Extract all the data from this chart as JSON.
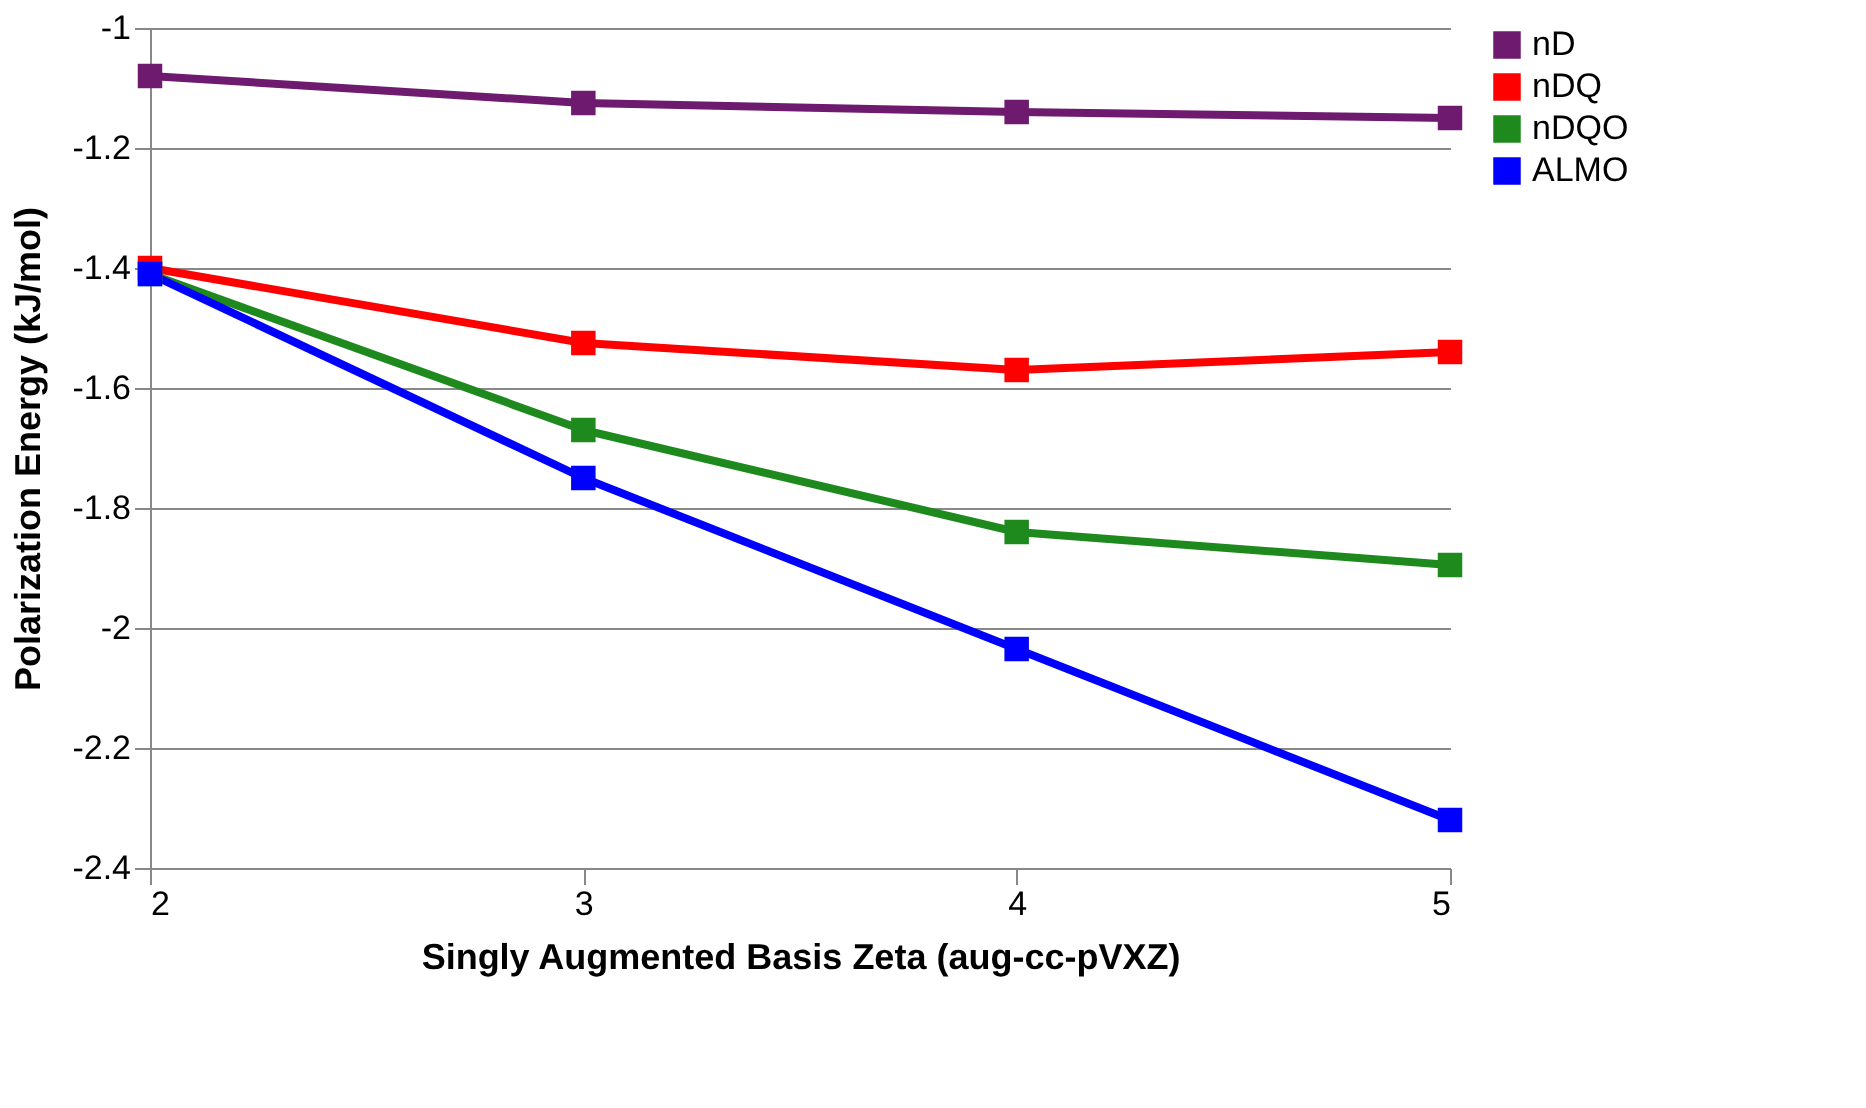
{
  "chart_data": {
    "type": "line",
    "xlabel": "Singly Augmented Basis Zeta (aug-cc-pVXZ)",
    "ylabel": "Polarization Energy (kJ/mol)",
    "x": [
      2,
      3,
      4,
      5
    ],
    "series": [
      {
        "name": "nD",
        "color": "#6e1a6e",
        "values": [
          -1.08,
          -1.125,
          -1.14,
          -1.15
        ]
      },
      {
        "name": "nDQ",
        "color": "#ff0000",
        "values": [
          -1.4,
          -1.525,
          -1.57,
          -1.54
        ]
      },
      {
        "name": "nDQO",
        "color": "#1e8a1e",
        "values": [
          -1.41,
          -1.67,
          -1.84,
          -1.895
        ]
      },
      {
        "name": "ALMO",
        "color": "#0000ff",
        "values": [
          -1.41,
          -1.75,
          -2.035,
          -2.32
        ]
      }
    ],
    "xlim": [
      2,
      5
    ],
    "xticks": [
      2,
      3,
      4,
      5
    ],
    "ylim": [
      -2.4,
      -1
    ],
    "yticks": [
      -2.4,
      -2.2,
      -2,
      -1.8,
      -1.6,
      -1.4,
      -1.2,
      -1
    ],
    "grid": "y",
    "legend": "right",
    "marker": "square",
    "line_style": "solid"
  }
}
